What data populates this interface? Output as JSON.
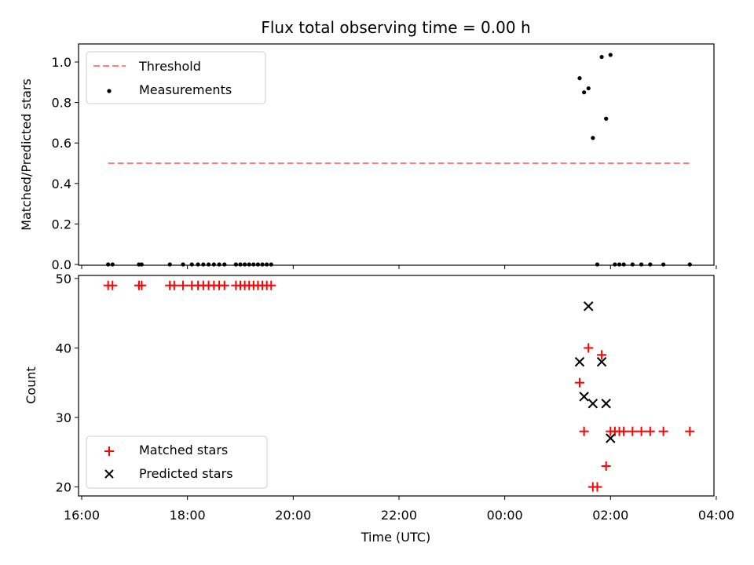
{
  "chart_data": [
    {
      "type": "scatter",
      "title": "Flux total observing time = 0.00 h",
      "xlabel": "",
      "ylabel": "Matched/Predicted stars",
      "ylim": [
        0,
        1.09
      ],
      "yticks": [
        "0.0",
        "0.2",
        "0.4",
        "0.6",
        "0.8",
        "1.0"
      ],
      "grid": false,
      "legend_position": "upper-left",
      "threshold": {
        "name": "Threshold",
        "y": 0.5,
        "x_range": [
          "16:30",
          "03:30"
        ],
        "color": "#ff7f7f",
        "style": "dashed"
      },
      "series": [
        {
          "name": "Measurements",
          "color": "#000000",
          "marker": "dot",
          "points": [
            [
              "16:30",
              0
            ],
            [
              "16:35",
              0
            ],
            [
              "17:05",
              0
            ],
            [
              "17:08",
              0
            ],
            [
              "17:40",
              0
            ],
            [
              "17:55",
              0
            ],
            [
              "18:05",
              0
            ],
            [
              "18:12",
              0
            ],
            [
              "18:18",
              0
            ],
            [
              "18:24",
              0
            ],
            [
              "18:30",
              0
            ],
            [
              "18:36",
              0
            ],
            [
              "18:42",
              0
            ],
            [
              "18:55",
              0
            ],
            [
              "19:00",
              0
            ],
            [
              "19:05",
              0
            ],
            [
              "19:10",
              0
            ],
            [
              "19:15",
              0
            ],
            [
              "19:20",
              0
            ],
            [
              "19:25",
              0
            ],
            [
              "19:30",
              0
            ],
            [
              "19:35",
              0
            ],
            [
              "01:25",
              0.92
            ],
            [
              "01:30",
              0.85
            ],
            [
              "01:35",
              0.87
            ],
            [
              "01:40",
              0.625
            ],
            [
              "01:45",
              0
            ],
            [
              "01:50",
              1.025
            ],
            [
              "01:55",
              0.72
            ],
            [
              "02:00",
              1.035
            ],
            [
              "02:05",
              0
            ],
            [
              "02:10",
              0
            ],
            [
              "02:15",
              0
            ],
            [
              "02:25",
              0
            ],
            [
              "02:35",
              0
            ],
            [
              "02:45",
              0
            ],
            [
              "03:00",
              0
            ],
            [
              "03:30",
              0
            ]
          ]
        }
      ]
    },
    {
      "type": "scatter",
      "title": "",
      "xlabel": "Time (UTC)",
      "ylabel": "Count",
      "ylim": [
        18.5,
        50.3
      ],
      "yticks": [
        "20",
        "30",
        "40",
        "50"
      ],
      "xticks": [
        "16:00",
        "18:00",
        "20:00",
        "22:00",
        "00:00",
        "02:00",
        "04:00"
      ],
      "grid": false,
      "legend_position": "lower-left",
      "series": [
        {
          "name": "Matched stars",
          "color": "#ff0000",
          "marker": "plus",
          "points": [
            [
              "16:30",
              49
            ],
            [
              "16:35",
              49
            ],
            [
              "17:05",
              49
            ],
            [
              "17:08",
              49
            ],
            [
              "17:40",
              49
            ],
            [
              "17:45",
              49
            ],
            [
              "17:55",
              49
            ],
            [
              "18:05",
              49
            ],
            [
              "18:12",
              49
            ],
            [
              "18:18",
              49
            ],
            [
              "18:24",
              49
            ],
            [
              "18:30",
              49
            ],
            [
              "18:36",
              49
            ],
            [
              "18:42",
              49
            ],
            [
              "18:55",
              49
            ],
            [
              "19:00",
              49
            ],
            [
              "19:05",
              49
            ],
            [
              "19:10",
              49
            ],
            [
              "19:15",
              49
            ],
            [
              "19:20",
              49
            ],
            [
              "19:25",
              49
            ],
            [
              "19:30",
              49
            ],
            [
              "19:35",
              49
            ],
            [
              "01:25",
              35
            ],
            [
              "01:30",
              28
            ],
            [
              "01:35",
              40
            ],
            [
              "01:40",
              20
            ],
            [
              "01:45",
              20
            ],
            [
              "01:50",
              39
            ],
            [
              "01:55",
              23
            ],
            [
              "02:00",
              28
            ],
            [
              "02:05",
              28
            ],
            [
              "02:10",
              28
            ],
            [
              "02:15",
              28
            ],
            [
              "02:25",
              28
            ],
            [
              "02:35",
              28
            ],
            [
              "02:45",
              28
            ],
            [
              "03:00",
              28
            ],
            [
              "03:30",
              28
            ]
          ]
        },
        {
          "name": "Predicted stars",
          "color": "#000000",
          "marker": "cross",
          "points": [
            [
              "01:25",
              38
            ],
            [
              "01:30",
              33
            ],
            [
              "01:35",
              46
            ],
            [
              "01:40",
              32
            ],
            [
              "01:50",
              38
            ],
            [
              "01:55",
              32
            ],
            [
              "02:00",
              27
            ]
          ]
        }
      ]
    }
  ]
}
